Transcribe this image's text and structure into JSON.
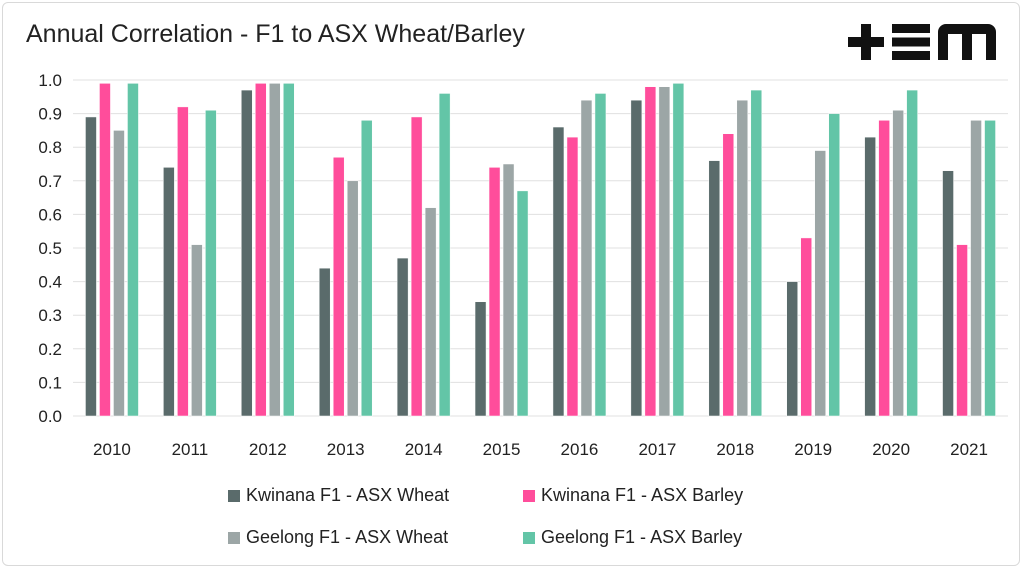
{
  "chart_data": {
    "type": "bar",
    "title": "Annual Correlation - F1 to ASX Wheat/Barley",
    "xlabel": "",
    "ylabel": "",
    "ylim": [
      0,
      1.0
    ],
    "yticks": [
      "0.0",
      "0.1",
      "0.2",
      "0.3",
      "0.4",
      "0.5",
      "0.6",
      "0.7",
      "0.8",
      "0.9",
      "1.0"
    ],
    "grid": true,
    "legend_position": "bottom",
    "categories": [
      "2010",
      "2011",
      "2012",
      "2013",
      "2014",
      "2015",
      "2016",
      "2017",
      "2018",
      "2019",
      "2020",
      "2021"
    ],
    "series": [
      {
        "name": "Kwinana F1 - ASX Wheat",
        "color": "#5a6b6b",
        "values": [
          0.89,
          0.74,
          0.97,
          0.44,
          0.47,
          0.34,
          0.86,
          0.94,
          0.76,
          0.4,
          0.83,
          0.73
        ]
      },
      {
        "name": "Kwinana F1 - ASX Barley",
        "color": "#ff4d9b",
        "values": [
          0.99,
          0.92,
          0.99,
          0.77,
          0.89,
          0.74,
          0.83,
          0.98,
          0.84,
          0.53,
          0.88,
          0.51
        ]
      },
      {
        "name": "Geelong F1 - ASX Wheat",
        "color": "#9ca6a6",
        "values": [
          0.85,
          0.51,
          0.99,
          0.7,
          0.62,
          0.75,
          0.94,
          0.98,
          0.94,
          0.79,
          0.91,
          0.88
        ]
      },
      {
        "name": "Geelong F1 - ASX Barley",
        "color": "#63c5a7",
        "values": [
          0.99,
          0.91,
          0.99,
          0.88,
          0.96,
          0.67,
          0.96,
          0.99,
          0.97,
          0.9,
          0.97,
          0.88
        ]
      }
    ]
  },
  "logo_text": "+EM"
}
